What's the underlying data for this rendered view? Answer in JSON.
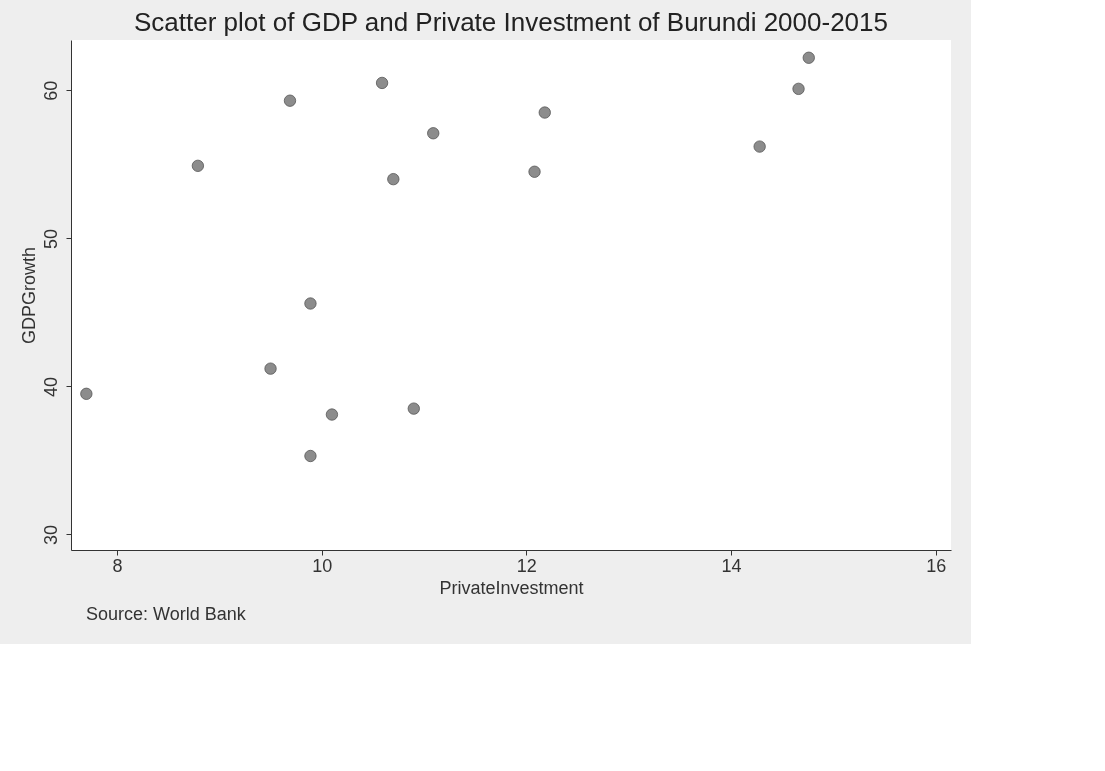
{
  "chart_data": {
    "type": "scatter",
    "title": "Scatter plot of GDP and Private Investment of Burundi 2000-2015",
    "xlabel": "PrivateInvestment",
    "ylabel": "GDPGrowth",
    "x": [
      7.7,
      8.79,
      9.69,
      10.59,
      11.09,
      10.7,
      9.89,
      9.5,
      10.1,
      10.9,
      9.89,
      12.18,
      12.08,
      14.28,
      14.66,
      14.76
    ],
    "series": [
      {
        "color": "#8c8c8c",
        "values": [
          39.5,
          54.9,
          59.3,
          60.5,
          57.1,
          54.0,
          45.6,
          41.2,
          38.1,
          38.5,
          35.3,
          58.5,
          54.5,
          56.2,
          60.1,
          62.2
        ]
      }
    ],
    "xlim": [
      7.55,
      16.15
    ],
    "ylim": [
      28.95,
      63.4
    ],
    "xticks": [
      8,
      10,
      12,
      14,
      16
    ],
    "yticks": [
      30,
      40,
      50,
      60
    ],
    "marker": "circle",
    "grid": false,
    "annotations": [
      "Source: World Bank"
    ]
  }
}
